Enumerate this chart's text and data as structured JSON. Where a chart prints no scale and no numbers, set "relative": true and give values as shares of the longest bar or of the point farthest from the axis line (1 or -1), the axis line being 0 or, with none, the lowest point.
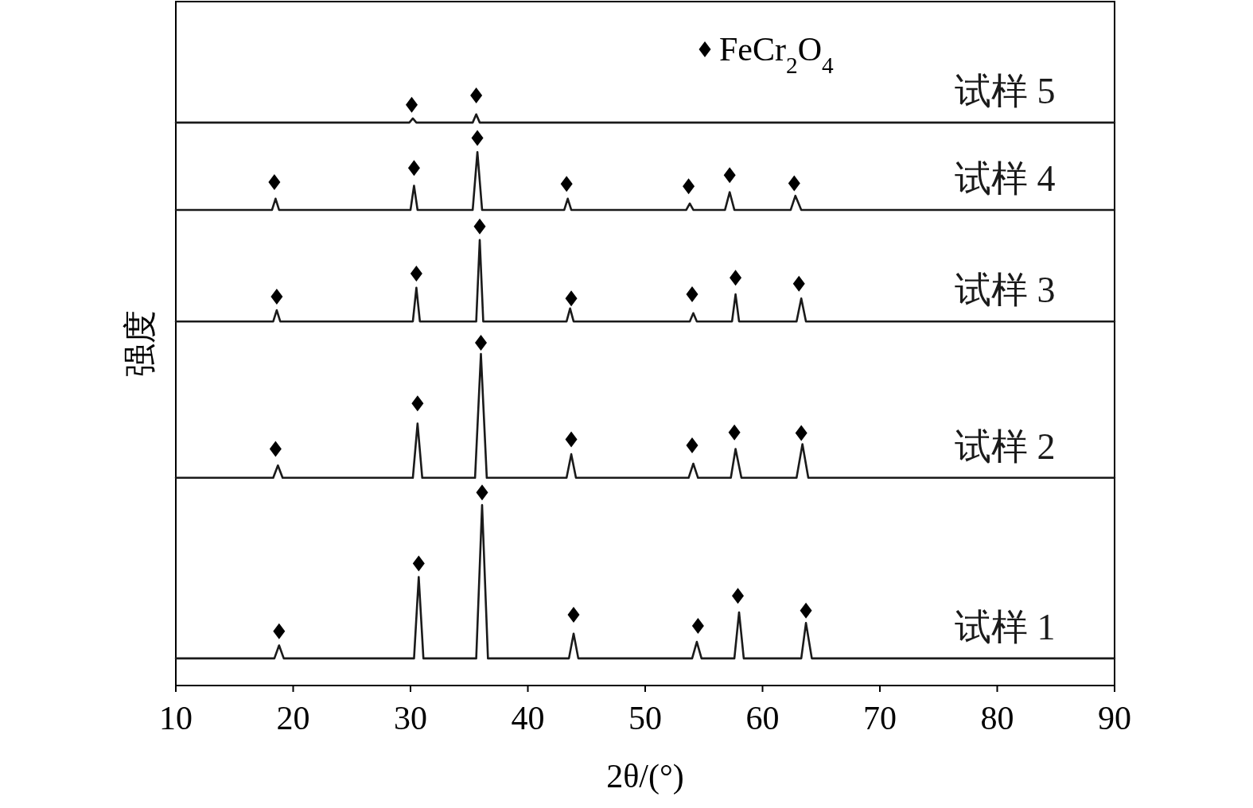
{
  "chart_data": {
    "type": "line",
    "xlabel": "2θ/(°)",
    "ylabel": "强度",
    "relative": true,
    "xlim": [
      10,
      90
    ],
    "xticks": [
      10,
      20,
      30,
      40,
      50,
      60,
      70,
      80,
      90
    ],
    "legend": "top",
    "grid": false,
    "series": [
      {
        "name": "试样 1",
        "color": "#1a1a1a",
        "x": [
          10,
          18.4,
          18.8,
          19.2,
          30.3,
          30.7,
          31.1,
          35.6,
          36.1,
          36.6,
          43.5,
          43.9,
          44.3,
          54.0,
          54.4,
          54.8,
          57.6,
          58.0,
          58.4,
          63.3,
          63.7,
          64.2,
          90
        ],
        "values": [
          0.046,
          0.046,
          0.068,
          0.046,
          0.046,
          0.184,
          0.046,
          0.046,
          0.306,
          0.046,
          0.046,
          0.088,
          0.046,
          0.046,
          0.074,
          0.046,
          0.046,
          0.124,
          0.046,
          0.046,
          0.106,
          0.046,
          0.046
        ]
      },
      {
        "name": "试样 2",
        "color": "#1a1a1a",
        "x": [
          10,
          18.3,
          18.7,
          19.1,
          30.2,
          30.6,
          31.0,
          35.5,
          36.0,
          36.5,
          43.3,
          43.7,
          44.1,
          53.7,
          54.1,
          54.5,
          57.3,
          57.7,
          58.2,
          62.9,
          63.4,
          63.9,
          90
        ],
        "values": [
          0.352,
          0.352,
          0.373,
          0.352,
          0.352,
          0.444,
          0.352,
          0.352,
          0.562,
          0.352,
          0.352,
          0.392,
          0.352,
          0.352,
          0.376,
          0.352,
          0.352,
          0.401,
          0.352,
          0.352,
          0.409,
          0.352,
          0.352
        ]
      },
      {
        "name": "试样 3",
        "color": "#1a1a1a",
        "x": [
          10,
          18.3,
          18.6,
          18.9,
          30.2,
          30.5,
          30.8,
          35.6,
          35.9,
          36.2,
          43.3,
          43.6,
          43.9,
          53.8,
          54.1,
          54.4,
          57.4,
          57.7,
          58.0,
          62.9,
          63.3,
          63.7,
          90
        ],
        "values": [
          0.617,
          0.617,
          0.636,
          0.617,
          0.617,
          0.674,
          0.617,
          0.617,
          0.755,
          0.617,
          0.617,
          0.639,
          0.617,
          0.617,
          0.631,
          0.617,
          0.617,
          0.663,
          0.617,
          0.617,
          0.656,
          0.617,
          0.617
        ]
      },
      {
        "name": "试样 4",
        "color": "#1a1a1a",
        "x": [
          10,
          18.2,
          18.5,
          18.8,
          30.0,
          30.3,
          30.6,
          35.3,
          35.7,
          36.1,
          43.1,
          43.4,
          43.7,
          53.5,
          53.8,
          54.1,
          56.8,
          57.2,
          57.6,
          62.4,
          62.8,
          63.3,
          90
        ],
        "values": [
          0.806,
          0.806,
          0.825,
          0.806,
          0.806,
          0.847,
          0.806,
          0.806,
          0.904,
          0.806,
          0.806,
          0.825,
          0.806,
          0.806,
          0.817,
          0.806,
          0.806,
          0.836,
          0.806,
          0.806,
          0.83,
          0.806,
          0.806
        ]
      },
      {
        "name": "试样 5",
        "color": "#1a1a1a",
        "x": [
          10,
          29.9,
          30.2,
          30.5,
          35.3,
          35.6,
          35.9,
          90
        ],
        "values": [
          0.954,
          0.954,
          0.961,
          0.954,
          0.954,
          0.968,
          0.954,
          0.954
        ]
      },
      {
        "name": "FeCr$_{2}$O$_{4}$",
        "type": "scatter",
        "marker": "diamond",
        "color": "#000000",
        "x": [
          18.8,
          30.7,
          36.1,
          43.9,
          54.5,
          57.9,
          63.7,
          18.5,
          30.6,
          36.0,
          43.7,
          54.0,
          57.6,
          63.3,
          18.6,
          30.5,
          35.9,
          43.7,
          54.0,
          57.7,
          63.1,
          18.4,
          30.3,
          35.7,
          43.3,
          53.7,
          57.2,
          62.7,
          30.1,
          35.6
        ],
        "values": [
          0.092,
          0.207,
          0.327,
          0.12,
          0.101,
          0.152,
          0.127,
          0.401,
          0.478,
          0.581,
          0.417,
          0.407,
          0.429,
          0.428,
          0.659,
          0.698,
          0.778,
          0.656,
          0.663,
          0.691,
          0.681,
          0.853,
          0.877,
          0.928,
          0.85,
          0.846,
          0.865,
          0.851,
          0.984,
          1.0
        ]
      }
    ]
  }
}
